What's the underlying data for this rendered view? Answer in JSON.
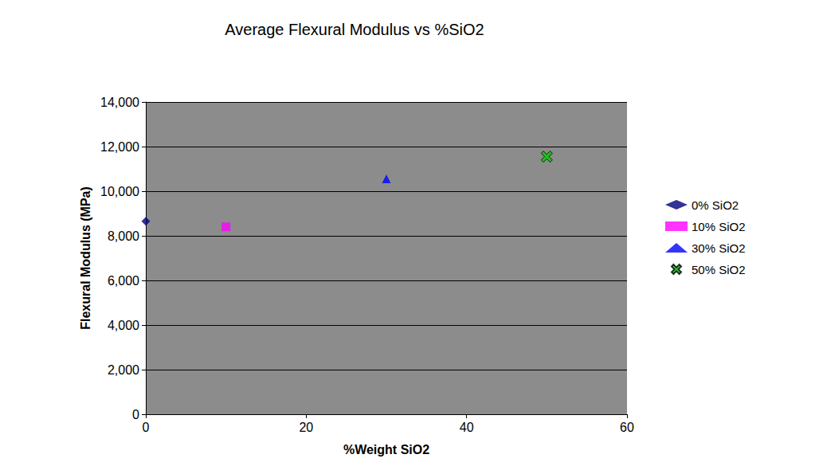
{
  "chart_data": {
    "type": "scatter",
    "title": "Average Flexural Modulus vs %SiO2",
    "x_label": "%Weight SiO2",
    "y_label": "Flexural Modulus (MPa)",
    "series": [
      {
        "name": "0% SiO2",
        "color": "#000080",
        "marker": "diamond",
        "x": [
          0
        ],
        "values": [
          8650
        ]
      },
      {
        "name": "10% SiO2",
        "color": "#ff00ff",
        "marker": "square",
        "x": [
          10
        ],
        "values": [
          8400
        ]
      },
      {
        "name": "30% SiO2",
        "color": "#0000ff",
        "marker": "triangle",
        "x": [
          30
        ],
        "values": [
          10550
        ]
      },
      {
        "name": "50% SiO2",
        "color": "#00cc00",
        "marker": "x",
        "x": [
          50
        ],
        "values": [
          11550
        ]
      }
    ],
    "xlim": [
      0,
      60
    ],
    "xticks": [
      0,
      20,
      40,
      60
    ],
    "ylim": [
      0,
      14000
    ],
    "yticks": [
      0,
      2000,
      4000,
      6000,
      8000,
      10000,
      12000,
      14000
    ],
    "grid": true,
    "legend": "right"
  }
}
